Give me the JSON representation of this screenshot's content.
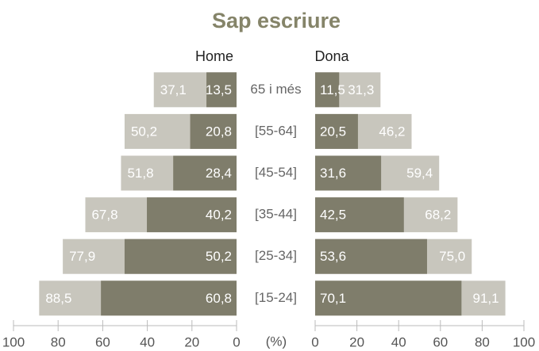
{
  "chart_data": {
    "type": "pyramid",
    "title": "Sap escriure",
    "categories": [
      "65 i més",
      "[55-64]",
      "[45-54]",
      "[35-44]",
      "[25-34]",
      "[15-24]"
    ],
    "xlabel": "(%)",
    "xlim": [
      0,
      100
    ],
    "xticks": [
      0,
      20,
      40,
      60,
      80,
      100
    ],
    "sides": [
      {
        "name": "Home",
        "series": [
          {
            "color": "#c8c6bd",
            "values": [
              37.1,
              50.2,
              51.8,
              67.8,
              77.9,
              88.5
            ],
            "value_labels": [
              "37,1",
              "50,2",
              "51,8",
              "67,8",
              "77,9",
              "88,5"
            ]
          },
          {
            "color": "#7f7d6b",
            "values": [
              13.5,
              20.8,
              28.4,
              40.2,
              50.2,
              60.8
            ],
            "value_labels": [
              "13,5",
              "20,8",
              "28,4",
              "40,2",
              "50,2",
              "60,8"
            ]
          }
        ]
      },
      {
        "name": "Dona",
        "series": [
          {
            "color": "#c8c6bd",
            "values": [
              31.3,
              46.2,
              59.4,
              68.2,
              75.0,
              91.1
            ],
            "value_labels": [
              "31,3",
              "46,2",
              "59,4",
              "68,2",
              "75,0",
              "91,1"
            ]
          },
          {
            "color": "#7f7d6b",
            "values": [
              11.5,
              20.5,
              31.6,
              42.5,
              53.6,
              70.1
            ],
            "value_labels": [
              "11,5",
              "20,5",
              "31,6",
              "42,5",
              "53,6",
              "70,1"
            ]
          }
        ]
      }
    ]
  }
}
